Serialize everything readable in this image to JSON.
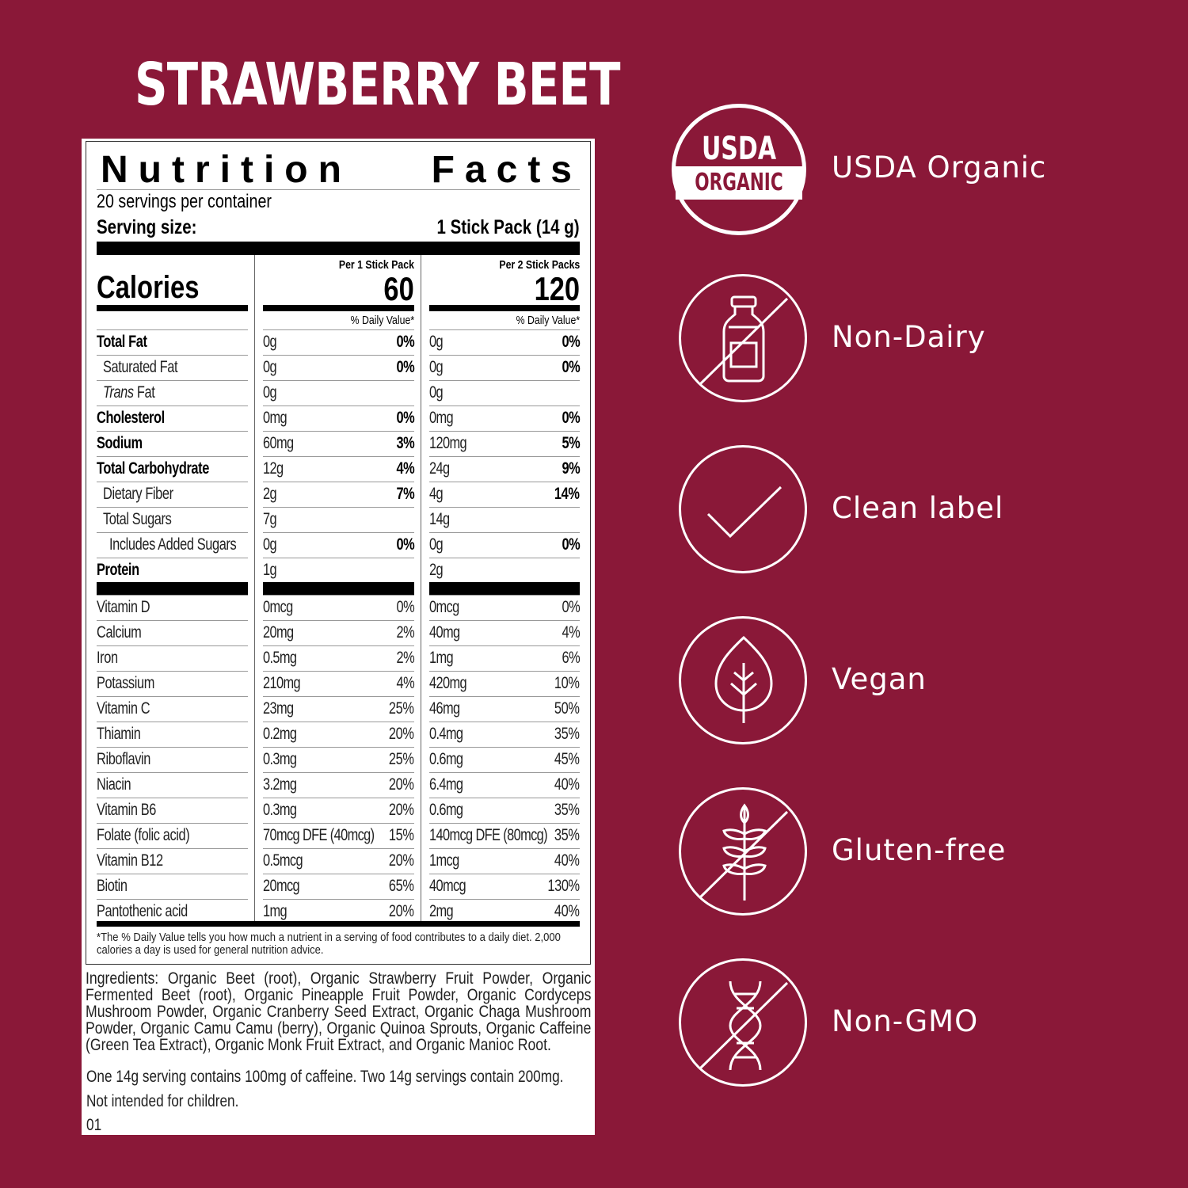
{
  "product_title": "STRAWBERRY BEET",
  "label": {
    "title_word1": "Nutrition",
    "title_word2": "Facts",
    "servings": "20 servings per container",
    "serving_size_label": "Serving size:",
    "serving_size_value": "1 Stick Pack (14 g)",
    "calories_label": "Calories",
    "col1_header": "Per 1 Stick Pack",
    "col1_calories": "60",
    "col2_header": "Per 2 Stick Packs",
    "col2_calories": "120",
    "dv_header": "% Daily Value*",
    "nutrients": [
      {
        "name": "Total Fat",
        "bold": true,
        "indent": 0,
        "a": "0g",
        "ap": "0%",
        "b": "0g",
        "bp": "0%"
      },
      {
        "name": "Saturated Fat",
        "indent": 1,
        "a": "0g",
        "ap": "0%",
        "b": "0g",
        "bp": "0%"
      },
      {
        "name": "Trans Fat",
        "italic_prefix": "Trans",
        "indent": 1,
        "a": "0g",
        "ap": "",
        "b": "0g",
        "bp": ""
      },
      {
        "name": "Cholesterol",
        "bold": true,
        "indent": 0,
        "a": "0mg",
        "ap": "0%",
        "b": "0mg",
        "bp": "0%"
      },
      {
        "name": "Sodium",
        "bold": true,
        "indent": 0,
        "a": "60mg",
        "ap": "3%",
        "b": "120mg",
        "bp": "5%"
      },
      {
        "name": "Total Carbohydrate",
        "bold": true,
        "indent": 0,
        "a": "12g",
        "ap": "4%",
        "b": "24g",
        "bp": "9%"
      },
      {
        "name": "Dietary Fiber",
        "indent": 1,
        "a": "2g",
        "ap": "7%",
        "b": "4g",
        "bp": "14%"
      },
      {
        "name": "Total Sugars",
        "indent": 1,
        "a": "7g",
        "ap": "",
        "b": "14g",
        "bp": ""
      },
      {
        "name": "Includes Added Sugars",
        "indent": 2,
        "a": "0g",
        "ap": "0%",
        "b": "0g",
        "bp": "0%"
      },
      {
        "name": "Protein",
        "bold": true,
        "indent": 0,
        "a": "1g",
        "ap": "",
        "b": "2g",
        "bp": ""
      }
    ],
    "vitamins": [
      {
        "name": "Vitamin D",
        "a": "0mcg",
        "ap": "0%",
        "b": "0mcg",
        "bp": "0%"
      },
      {
        "name": "Calcium",
        "a": "20mg",
        "ap": "2%",
        "b": "40mg",
        "bp": "4%"
      },
      {
        "name": "Iron",
        "a": "0.5mg",
        "ap": "2%",
        "b": "1mg",
        "bp": "6%"
      },
      {
        "name": "Potassium",
        "a": "210mg",
        "ap": "4%",
        "b": "420mg",
        "bp": "10%"
      },
      {
        "name": "Vitamin C",
        "a": "23mg",
        "ap": "25%",
        "b": "46mg",
        "bp": "50%"
      },
      {
        "name": "Thiamin",
        "a": "0.2mg",
        "ap": "20%",
        "b": "0.4mg",
        "bp": "35%"
      },
      {
        "name": "Riboflavin",
        "a": "0.3mg",
        "ap": "25%",
        "b": "0.6mg",
        "bp": "45%"
      },
      {
        "name": "Niacin",
        "a": "3.2mg",
        "ap": "20%",
        "b": "6.4mg",
        "bp": "40%"
      },
      {
        "name": "Vitamin B6",
        "a": "0.3mg",
        "ap": "20%",
        "b": "0.6mg",
        "bp": "35%"
      },
      {
        "name": "Folate (folic acid)",
        "a": "70mcg DFE (40mcg)",
        "ap": "15%",
        "b": "140mcg DFE (80mcg)",
        "bp": "35%"
      },
      {
        "name": "Vitamin B12",
        "a": "0.5mcg",
        "ap": "20%",
        "b": "1mcg",
        "bp": "40%"
      },
      {
        "name": "Biotin",
        "a": "20mcg",
        "ap": "65%",
        "b": "40mcg",
        "bp": "130%"
      },
      {
        "name": "Pantothenic acid",
        "a": "1mg",
        "ap": "20%",
        "b": "2mg",
        "bp": "40%"
      }
    ],
    "footnote": "*The % Daily Value tells you how much a nutrient in a serving of food contributes to a daily diet. 2,000 calories a day is used for general nutrition advice.",
    "ingredients": "Ingredients: Organic Beet (root), Organic Strawberry Fruit Powder, Organic Fermented Beet (root), Organic Pineapple Fruit Powder, Organic Cordyceps Mushroom Powder, Organic Cranberry Seed Extract, Organic Chaga Mushroom Powder, Organic Camu Camu (berry), Organic Quinoa Sprouts, Organic Caffeine (Green Tea Extract), Organic Monk Fruit Extract, and Organic Manioc Root.",
    "caffeine_note": "One 14g serving contains 100mg of caffeine. Two 14g servings contain 200mg.",
    "children_note": "Not intended for children.",
    "code": "01"
  },
  "badges": [
    {
      "icon": "usda-organic-seal-icon",
      "label": "USDA Organic",
      "seal_top": "USDA",
      "seal_bottom": "ORGANIC"
    },
    {
      "icon": "no-dairy-bottle-icon",
      "label": "Non-Dairy"
    },
    {
      "icon": "checkmark-icon",
      "label": "Clean label"
    },
    {
      "icon": "leaf-icon",
      "label": "Vegan"
    },
    {
      "icon": "no-wheat-icon",
      "label": "Gluten-free"
    },
    {
      "icon": "no-dna-icon",
      "label": "Non-GMO"
    }
  ],
  "colors": {
    "background": "#8a1838",
    "label": "#ffffff",
    "text": "#000000"
  }
}
